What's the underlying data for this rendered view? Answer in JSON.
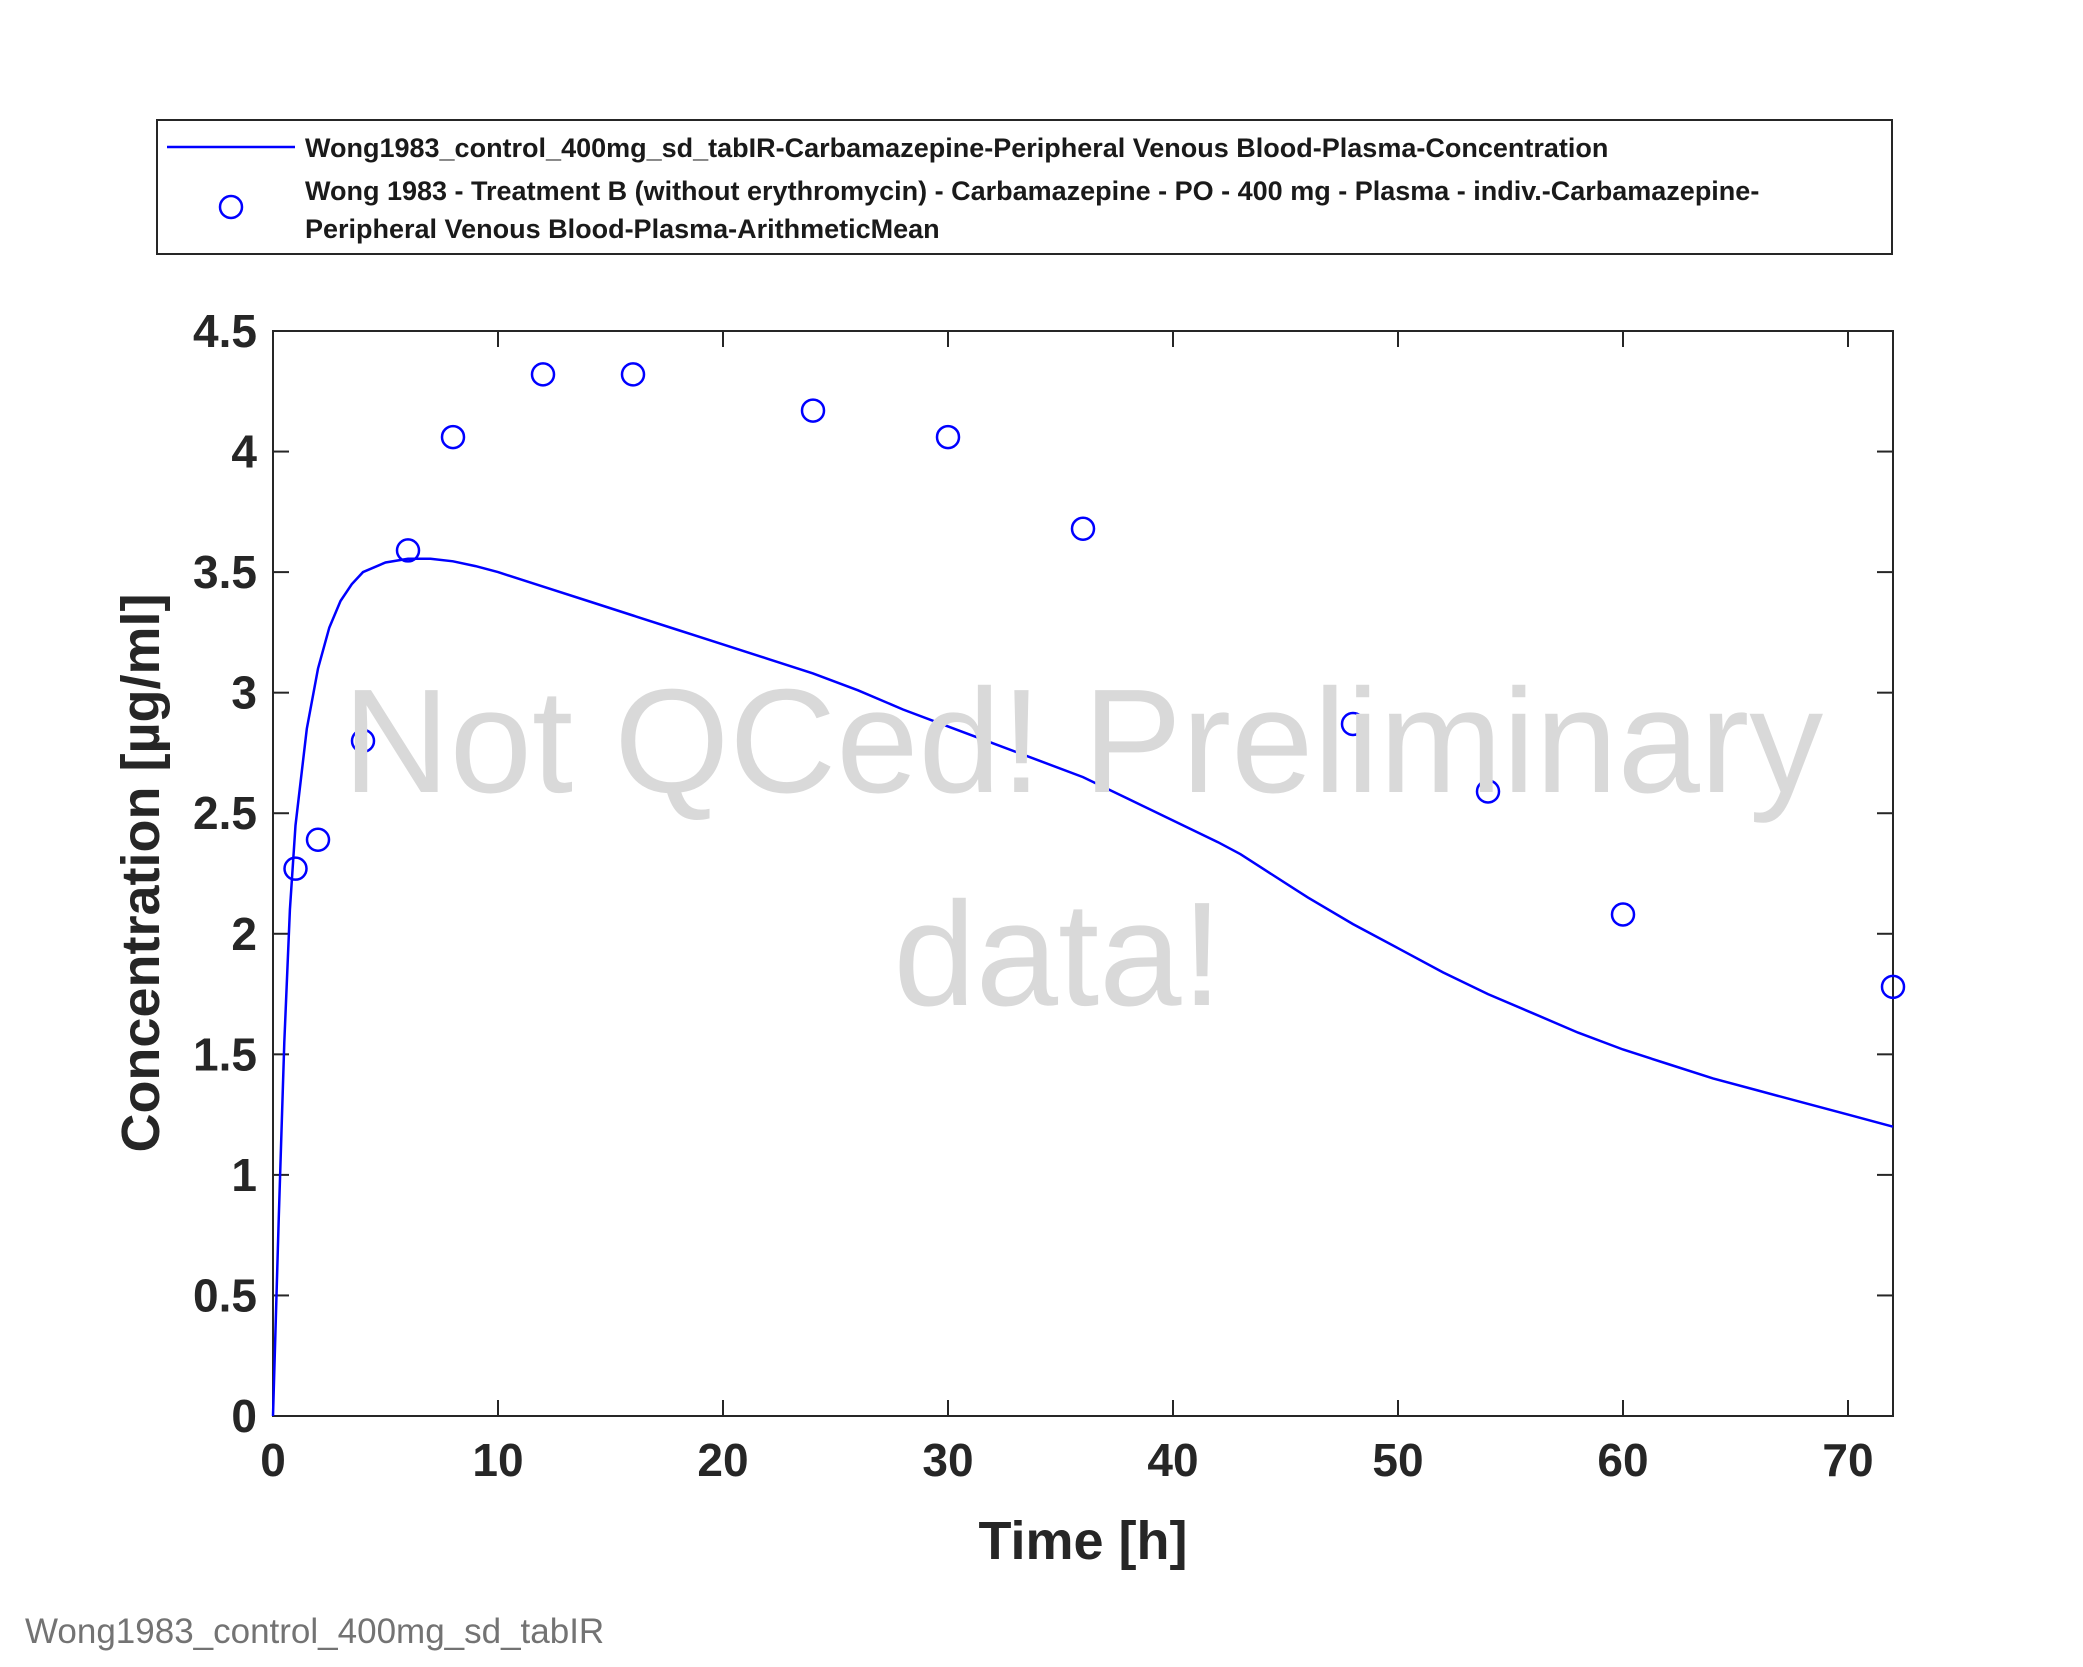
{
  "chart_data": {
    "type": "line",
    "title": "",
    "xlabel": "Time [h]",
    "ylabel": "Concentration [µg/ml]",
    "xlim": [
      0,
      72
    ],
    "ylim": [
      0,
      4.5
    ],
    "xticks": [
      0,
      10,
      20,
      30,
      40,
      50,
      60,
      70
    ],
    "yticks": [
      0,
      0.5,
      1,
      1.5,
      2,
      2.5,
      3,
      3.5,
      4,
      4.5
    ],
    "xtick_labels": [
      "0",
      "10",
      "20",
      "30",
      "40",
      "50",
      "60",
      "70"
    ],
    "ytick_labels": [
      "0",
      "0.5",
      "1",
      "1.5",
      "2",
      "2.5",
      "3",
      "3.5",
      "4",
      "4.5"
    ],
    "grid": false,
    "legend_position": "top, outside plot area",
    "series": [
      {
        "name": "Wong1983_control_400mg_sd_tabIR-Carbamazepine-Peripheral Venous Blood-Plasma-Concentration",
        "style": "line",
        "color": "#0000ff",
        "x": [
          0,
          0.25,
          0.5,
          0.75,
          1,
          1.5,
          2,
          2.5,
          3,
          3.5,
          4,
          5,
          6,
          7,
          8,
          9,
          10,
          12,
          14,
          16,
          18,
          20,
          22,
          24,
          26,
          28,
          30,
          32,
          34,
          36,
          38,
          40,
          42,
          43,
          44,
          46,
          48,
          50,
          52,
          54,
          56,
          58,
          60,
          62,
          64,
          66,
          68,
          70,
          72
        ],
        "y": [
          0,
          0.8,
          1.55,
          2.1,
          2.45,
          2.85,
          3.1,
          3.27,
          3.38,
          3.45,
          3.5,
          3.54,
          3.555,
          3.555,
          3.545,
          3.525,
          3.5,
          3.44,
          3.38,
          3.32,
          3.26,
          3.2,
          3.14,
          3.08,
          3.01,
          2.93,
          2.86,
          2.79,
          2.72,
          2.65,
          2.56,
          2.47,
          2.38,
          2.33,
          2.27,
          2.15,
          2.04,
          1.94,
          1.84,
          1.75,
          1.67,
          1.59,
          1.52,
          1.46,
          1.4,
          1.35,
          1.3,
          1.25,
          1.2
        ]
      },
      {
        "name": "Wong 1983 - Treatment B (without erythromycin) - Carbamazepine - PO - 400 mg - Plasma - indiv.-Carbamazepine-Peripheral Venous Blood-Plasma-ArithmeticMean",
        "style": "markers",
        "marker": "open-circle",
        "color": "#0000ff",
        "x": [
          1,
          2,
          4,
          6,
          8,
          12,
          16,
          24,
          30,
          36,
          48,
          54,
          60,
          72
        ],
        "y": [
          2.27,
          2.39,
          2.8,
          3.59,
          4.06,
          4.32,
          4.32,
          4.17,
          4.06,
          3.68,
          2.87,
          2.59,
          2.08,
          1.78
        ]
      }
    ]
  },
  "legend": {
    "line_label": "Wong1983_control_400mg_sd_tabIR-Carbamazepine-Peripheral Venous Blood-Plasma-Concentration",
    "marker_label_line1": "Wong 1983 - Treatment B (without erythromycin) - Carbamazepine - PO - 400 mg - Plasma - indiv.-Carbamazepine-",
    "marker_label_line2": "Peripheral Venous Blood-Plasma-ArithmeticMean"
  },
  "watermark": {
    "line1": "Not QCed! Preliminary",
    "line2": "data!"
  },
  "footer": "Wong1983_control_400mg_sd_tabIR",
  "colors": {
    "series": "#0000ff",
    "watermark": "#d9d9d9",
    "axes": "#262626",
    "footer": "#737373"
  }
}
